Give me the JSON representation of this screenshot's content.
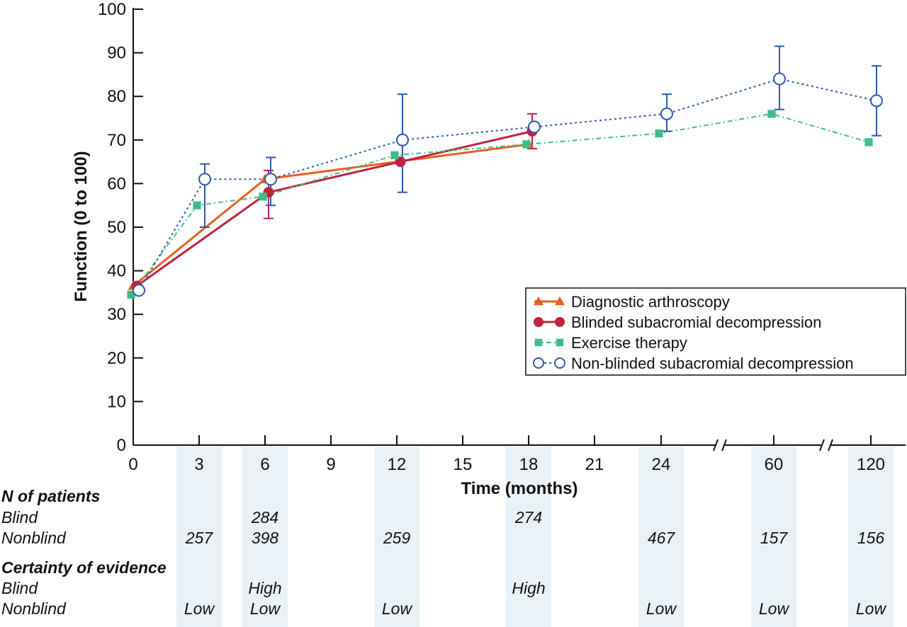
{
  "chart_data": {
    "type": "line",
    "xlabel": "Time (months)",
    "ylabel": "Function (0 to 100)",
    "ylim": [
      0,
      100
    ],
    "yticks": [
      0,
      10,
      20,
      30,
      40,
      50,
      60,
      70,
      80,
      90,
      100
    ],
    "xticks": [
      "0",
      "3",
      "6",
      "9",
      "12",
      "15",
      "18",
      "21",
      "24",
      "60",
      "120"
    ],
    "x_axis_breaks": [
      "between 24 and 60",
      "between 60 and 120"
    ],
    "grid": false,
    "legend_position": "right",
    "series": [
      {
        "name": "Diagnostic arthroscopy",
        "color": "#e8601c",
        "marker": "triangle",
        "line": "solid",
        "points": [
          {
            "x": 0,
            "y": 36.5
          },
          {
            "x": 6,
            "y": 61
          },
          {
            "x": 18,
            "y": 69
          }
        ]
      },
      {
        "name": "Blinded subacromial decompression",
        "color": "#c0233e",
        "marker": "filled-circle",
        "line": "solid",
        "points": [
          {
            "x": 0,
            "y": 36.5
          },
          {
            "x": 6,
            "y": 58,
            "err_low": 52,
            "err_high": 63
          },
          {
            "x": 12,
            "y": 65
          },
          {
            "x": 18,
            "y": 72,
            "err_low": 68,
            "err_high": 76
          }
        ]
      },
      {
        "name": "Exercise therapy",
        "color": "#3ebd8c",
        "marker": "square",
        "line": "dash-dot",
        "points": [
          {
            "x": 0,
            "y": 34.5
          },
          {
            "x": 3,
            "y": 55
          },
          {
            "x": 6,
            "y": 57
          },
          {
            "x": 12,
            "y": 66.5
          },
          {
            "x": 18,
            "y": 69
          },
          {
            "x": 24,
            "y": 71.5
          },
          {
            "x": 60,
            "y": 76
          },
          {
            "x": 120,
            "y": 69.5
          }
        ]
      },
      {
        "name": "Non-blinded subacromial decompression",
        "color": "#2e5aac",
        "marker": "open-circle",
        "line": "dotted",
        "points": [
          {
            "x": 0,
            "y": 35.5
          },
          {
            "x": 3,
            "y": 61,
            "err_low": 50,
            "err_high": 64.5
          },
          {
            "x": 6,
            "y": 61,
            "err_low": 55,
            "err_high": 66
          },
          {
            "x": 12,
            "y": 70,
            "err_low": 58,
            "err_high": 80.5
          },
          {
            "x": 18,
            "y": 73
          },
          {
            "x": 24,
            "y": 76,
            "err_low": 72,
            "err_high": 80.5
          },
          {
            "x": 60,
            "y": 84,
            "err_low": 77,
            "err_high": 91.5
          },
          {
            "x": 120,
            "y": 79,
            "err_low": 71,
            "err_high": 87
          }
        ]
      }
    ]
  },
  "table": {
    "n_heading": "N of patients",
    "certainty_heading": "Certainty of evidence",
    "blind_label": "Blind",
    "nonblind_label": "Nonblind",
    "columns": [
      {
        "x": 3,
        "n_blind": "",
        "n_nonblind": "257",
        "c_blind": "",
        "c_nonblind": "Low"
      },
      {
        "x": 6,
        "n_blind": "284",
        "n_nonblind": "398",
        "c_blind": "High",
        "c_nonblind": "Low"
      },
      {
        "x": 12,
        "n_blind": "",
        "n_nonblind": "259",
        "c_blind": "",
        "c_nonblind": "Low"
      },
      {
        "x": 18,
        "n_blind": "274",
        "n_nonblind": "",
        "c_blind": "High",
        "c_nonblind": ""
      },
      {
        "x": 24,
        "n_blind": "",
        "n_nonblind": "467",
        "c_blind": "",
        "c_nonblind": "Low"
      },
      {
        "x": 60,
        "n_blind": "",
        "n_nonblind": "157",
        "c_blind": "",
        "c_nonblind": "Low"
      },
      {
        "x": 120,
        "n_blind": "",
        "n_nonblind": "156",
        "c_blind": "",
        "c_nonblind": "Low"
      }
    ]
  },
  "colors": {
    "axis": "#111111",
    "column_band": "#eaf2f8"
  }
}
